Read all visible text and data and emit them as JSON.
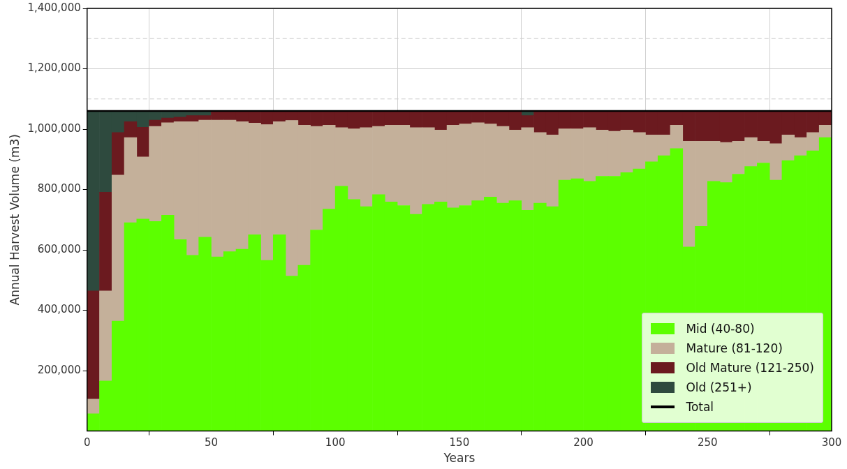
{
  "chart_data": {
    "type": "bar",
    "stacked": true,
    "xlabel": "Years",
    "ylabel": "Annual Harvest Volume (m3)",
    "x": [
      2.5,
      7.5,
      12.5,
      17.5,
      22.5,
      27.5,
      32.5,
      37.5,
      42.5,
      47.5,
      52.5,
      57.5,
      62.5,
      67.5,
      72.5,
      77.5,
      82.5,
      87.5,
      92.5,
      97.5,
      102.5,
      107.5,
      112.5,
      117.5,
      122.5,
      127.5,
      132.5,
      137.5,
      142.5,
      147.5,
      152.5,
      157.5,
      162.5,
      167.5,
      172.5,
      177.5,
      182.5,
      187.5,
      192.5,
      197.5,
      202.5,
      207.5,
      212.5,
      217.5,
      222.5,
      227.5,
      232.5,
      237.5,
      242.5,
      247.5,
      252.5,
      257.5,
      262.5,
      267.5,
      272.5,
      277.5,
      282.5,
      287.5,
      292.5,
      297.5
    ],
    "series": [
      {
        "name": "Mid (40-80)",
        "color": "#5cff00",
        "values": [
          57000,
          166000,
          364000,
          690000,
          702000,
          694000,
          715000,
          634000,
          582000,
          642000,
          577000,
          594000,
          602000,
          650000,
          565000,
          650000,
          513000,
          549000,
          666000,
          735000,
          811000,
          767000,
          743000,
          783000,
          759000,
          747000,
          718000,
          751000,
          759000,
          739000,
          747000,
          763000,
          775000,
          755000,
          763000,
          731000,
          755000,
          743000,
          831000,
          836000,
          827000,
          844000,
          844000,
          856000,
          868000,
          892000,
          912000,
          936000,
          610000,
          678000,
          827000,
          823000,
          851000,
          876000,
          888000,
          831000,
          896000,
          912000,
          928000,
          972000
        ]
      },
      {
        "name": "Mature (81-120)",
        "color": "#c4b09a",
        "values": [
          49000,
          298000,
          484000,
          282000,
          206000,
          315000,
          306000,
          391000,
          443000,
          388000,
          453000,
          436000,
          423000,
          370000,
          450000,
          375000,
          516000,
          464000,
          343000,
          278000,
          194000,
          234000,
          262000,
          226000,
          254000,
          266000,
          287000,
          254000,
          238000,
          274000,
          270000,
          258000,
          242000,
          254000,
          234000,
          274000,
          234000,
          238000,
          170000,
          165000,
          178000,
          153000,
          149000,
          141000,
          121000,
          89000,
          69000,
          77000,
          350000,
          282000,
          133000,
          133000,
          109000,
          96000,
          72000,
          121000,
          85000,
          60000,
          61000,
          41000
        ]
      },
      {
        "name": "Old Mature (121-250)",
        "color": "#6b1a1f",
        "values": [
          358000,
          327000,
          141000,
          53000,
          98000,
          21000,
          16000,
          15000,
          20000,
          15000,
          30000,
          30000,
          35000,
          40000,
          45000,
          35000,
          31000,
          47000,
          51000,
          47000,
          55000,
          59000,
          55000,
          51000,
          47000,
          47000,
          55000,
          55000,
          63000,
          47000,
          43000,
          39000,
          43000,
          51000,
          63000,
          40000,
          71000,
          79000,
          59000,
          59000,
          55000,
          63000,
          67000,
          63000,
          71000,
          79000,
          79000,
          47000,
          100000,
          100000,
          100000,
          104000,
          100000,
          88000,
          100000,
          108000,
          79000,
          88000,
          71000,
          47000
        ]
      },
      {
        "name": "Old (251+)",
        "color": "#2e4a3e",
        "values": [
          596000,
          269000,
          71000,
          35000,
          54000,
          30000,
          23000,
          20000,
          15000,
          15000,
          0,
          0,
          0,
          0,
          0,
          0,
          0,
          0,
          0,
          0,
          0,
          0,
          0,
          0,
          0,
          0,
          0,
          0,
          0,
          0,
          0,
          0,
          0,
          0,
          0,
          15000,
          0,
          0,
          0,
          0,
          0,
          0,
          0,
          0,
          0,
          0,
          0,
          0,
          0,
          0,
          0,
          0,
          0,
          0,
          0,
          0,
          0,
          0,
          0,
          0
        ]
      },
      {
        "name": "Total",
        "color": "#000000",
        "type": "line",
        "x": [
          0,
          300
        ],
        "values": [
          1060000,
          1060000
        ]
      }
    ],
    "xlim": [
      0,
      300
    ],
    "xticks": [
      0,
      50,
      100,
      150,
      200,
      250,
      300
    ],
    "ylim": [
      0,
      1400000
    ],
    "yticks": [
      {
        "value": 200000,
        "label": "200,000"
      },
      {
        "value": 400000,
        "label": "400,000"
      },
      {
        "value": 600000,
        "label": "600,000"
      },
      {
        "value": 800000,
        "label": "800,000"
      },
      {
        "value": 1000000,
        "label": "1,000,000"
      },
      {
        "value": 1200000,
        "label": "1,200,000"
      },
      {
        "value": 1400000,
        "label": "1,400,000"
      }
    ],
    "ref_lines": [
      {
        "axis": "y",
        "value": 1300000,
        "color": "#cccccc",
        "line_style": "dashed"
      },
      {
        "axis": "y",
        "value": 1100000,
        "color": "#cccccc",
        "line_style": "dashed"
      }
    ],
    "grid": true,
    "legend": "bottom right"
  }
}
